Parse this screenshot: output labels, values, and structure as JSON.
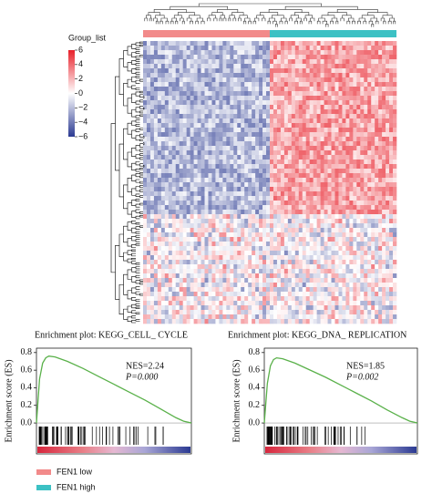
{
  "chart_data": [
    {
      "type": "heatmap",
      "legend_title": "Group_list",
      "colorbar": {
        "ticks": [
          6,
          4,
          2,
          0,
          {
            "value": -2,
            "label": "−2"
          },
          {
            "value": -4,
            "label": "−4"
          },
          {
            "value": -6,
            "label": "−6"
          }
        ],
        "lim": [
          -6,
          6
        ],
        "colors": [
          "#2b3a92",
          "#ffffff",
          "#e8202a"
        ]
      },
      "groups": [
        {
          "name": "FEN1 low",
          "color": "#f28a8a"
        },
        {
          "name": "FEN1 high",
          "color": "#3cc1c4"
        }
      ]
    },
    {
      "type": "line",
      "title": "Enrichment plot: KEGG_CELL_ CYCLE",
      "ylabel": "Enrichment score (ES)",
      "annotations": [
        "NES=2.24",
        "P=0.000"
      ],
      "x": [
        0,
        2,
        4,
        6,
        8,
        12,
        20,
        30,
        40,
        50,
        60,
        70,
        80,
        90,
        95,
        100
      ],
      "series": [
        {
          "color": "#5ab14a",
          "values": [
            0,
            0.5,
            0.68,
            0.74,
            0.76,
            0.75,
            0.7,
            0.62,
            0.53,
            0.44,
            0.35,
            0.26,
            0.16,
            0.06,
            0.02,
            0.0
          ]
        }
      ],
      "xlim": [
        0,
        100
      ],
      "ylim": [
        -0.02,
        0.85
      ],
      "yticks": [
        {
          "value": 0,
          "label": "0.0"
        },
        {
          "value": 0.2,
          "label": "0.2"
        },
        {
          "value": 0.4,
          "label": "0.4"
        },
        {
          "value": 0.6,
          "label": "0.6"
        },
        {
          "value": 0.8,
          "label": "0.8"
        }
      ]
    },
    {
      "type": "line",
      "title": "Enrichment plot: KEGG_DNA_ REPLICATION",
      "ylabel": "Enrichment score (ES)",
      "annotations": [
        "NES=1.85",
        "P=0.002"
      ],
      "x": [
        0,
        2,
        4,
        6,
        8,
        12,
        20,
        30,
        40,
        50,
        60,
        70,
        80,
        90,
        95,
        100
      ],
      "series": [
        {
          "color": "#5ab14a",
          "values": [
            0,
            0.45,
            0.65,
            0.72,
            0.74,
            0.73,
            0.68,
            0.6,
            0.52,
            0.43,
            0.34,
            0.25,
            0.15,
            0.06,
            0.02,
            0.0
          ]
        }
      ],
      "xlim": [
        0,
        100
      ],
      "ylim": [
        -0.02,
        0.85
      ],
      "yticks": [
        {
          "value": 0,
          "label": "0.0"
        },
        {
          "value": 0.2,
          "label": "0.2"
        },
        {
          "value": 0.4,
          "label": "0.4"
        },
        {
          "value": 0.6,
          "label": "0.6"
        },
        {
          "value": 0.8,
          "label": "0.8"
        }
      ]
    }
  ]
}
